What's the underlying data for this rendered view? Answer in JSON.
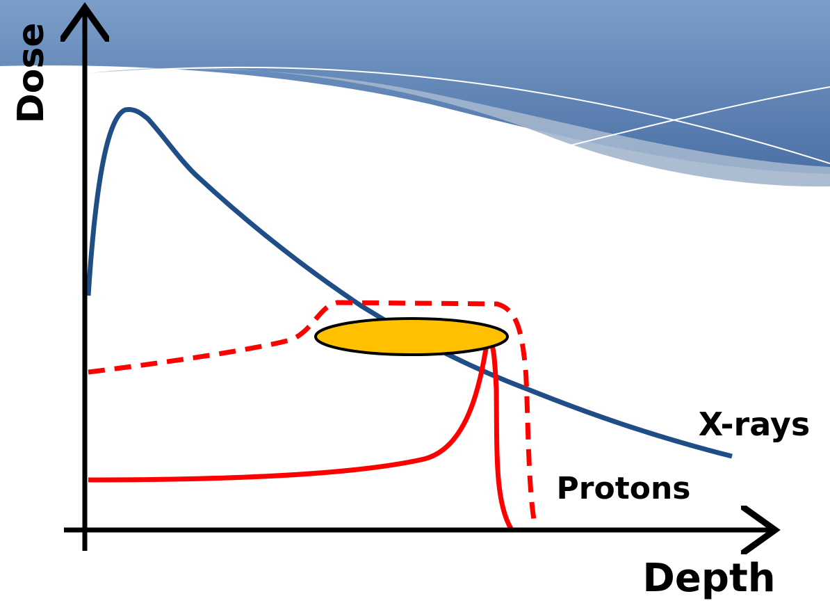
{
  "axes": {
    "y_label": "Dose",
    "x_label": "Depth"
  },
  "curves": [
    {
      "label": "X-rays"
    },
    {
      "label": "Protons"
    }
  ]
}
